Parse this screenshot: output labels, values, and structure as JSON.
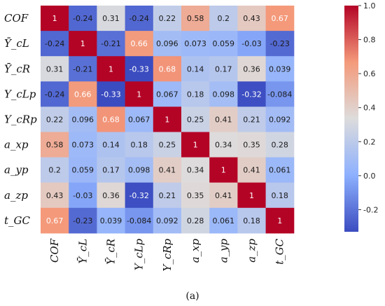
{
  "chart_data": {
    "type": "heatmap",
    "title": "",
    "row_labels": [
      "COF",
      "Ȳ_cL",
      "Ȳ_cR",
      "Y_cLp",
      "Y_cRp",
      "a_xp",
      "a_yp",
      "a_zp",
      "t_GC"
    ],
    "col_labels": [
      "COF",
      "Ȳ_cL",
      "Ȳ_cR",
      "Y_cLp",
      "Y_cRp",
      "a_xp",
      "a_yp",
      "a_zp",
      "t_GC"
    ],
    "values": [
      [
        "1",
        "-0.24",
        "0.31",
        "-0.24",
        "0.22",
        "0.58",
        "0.2",
        "0.43",
        "0.67"
      ],
      [
        "-0.24",
        "1",
        "-0.21",
        "0.66",
        "0.096",
        "0.073",
        "0.059",
        "-0.03",
        "-0.23"
      ],
      [
        "0.31",
        "-0.21",
        "1",
        "-0.33",
        "0.68",
        "0.14",
        "0.17",
        "0.36",
        "0.039"
      ],
      [
        "-0.24",
        "0.66",
        "-0.33",
        "1",
        "0.067",
        "0.18",
        "0.098",
        "-0.32",
        "-0.084"
      ],
      [
        "0.22",
        "0.096",
        "0.68",
        "0.067",
        "1",
        "0.25",
        "0.41",
        "0.21",
        "0.092"
      ],
      [
        "0.58",
        "0.073",
        "0.14",
        "0.18",
        "0.25",
        "1",
        "0.34",
        "0.35",
        "0.28"
      ],
      [
        "0.2",
        "0.059",
        "0.17",
        "0.098",
        "0.41",
        "0.34",
        "1",
        "0.41",
        "0.061"
      ],
      [
        "0.43",
        "-0.03",
        "0.36",
        "-0.32",
        "0.21",
        "0.35",
        "0.41",
        "1",
        "0.18"
      ],
      [
        "0.67",
        "-0.23",
        "0.039",
        "-0.084",
        "0.092",
        "0.28",
        "0.061",
        "0.18",
        "1"
      ]
    ],
    "colorbar": {
      "colormap": "coolwarm",
      "min": -0.33,
      "max": 1.0,
      "ticks": [
        "1.0",
        "0.8",
        "0.6",
        "0.4",
        "0.2",
        "0.0",
        "-0.2"
      ],
      "tick_values": [
        1.0,
        0.8,
        0.6,
        0.4,
        0.2,
        0.0,
        -0.2
      ]
    },
    "caption": "(a)"
  }
}
